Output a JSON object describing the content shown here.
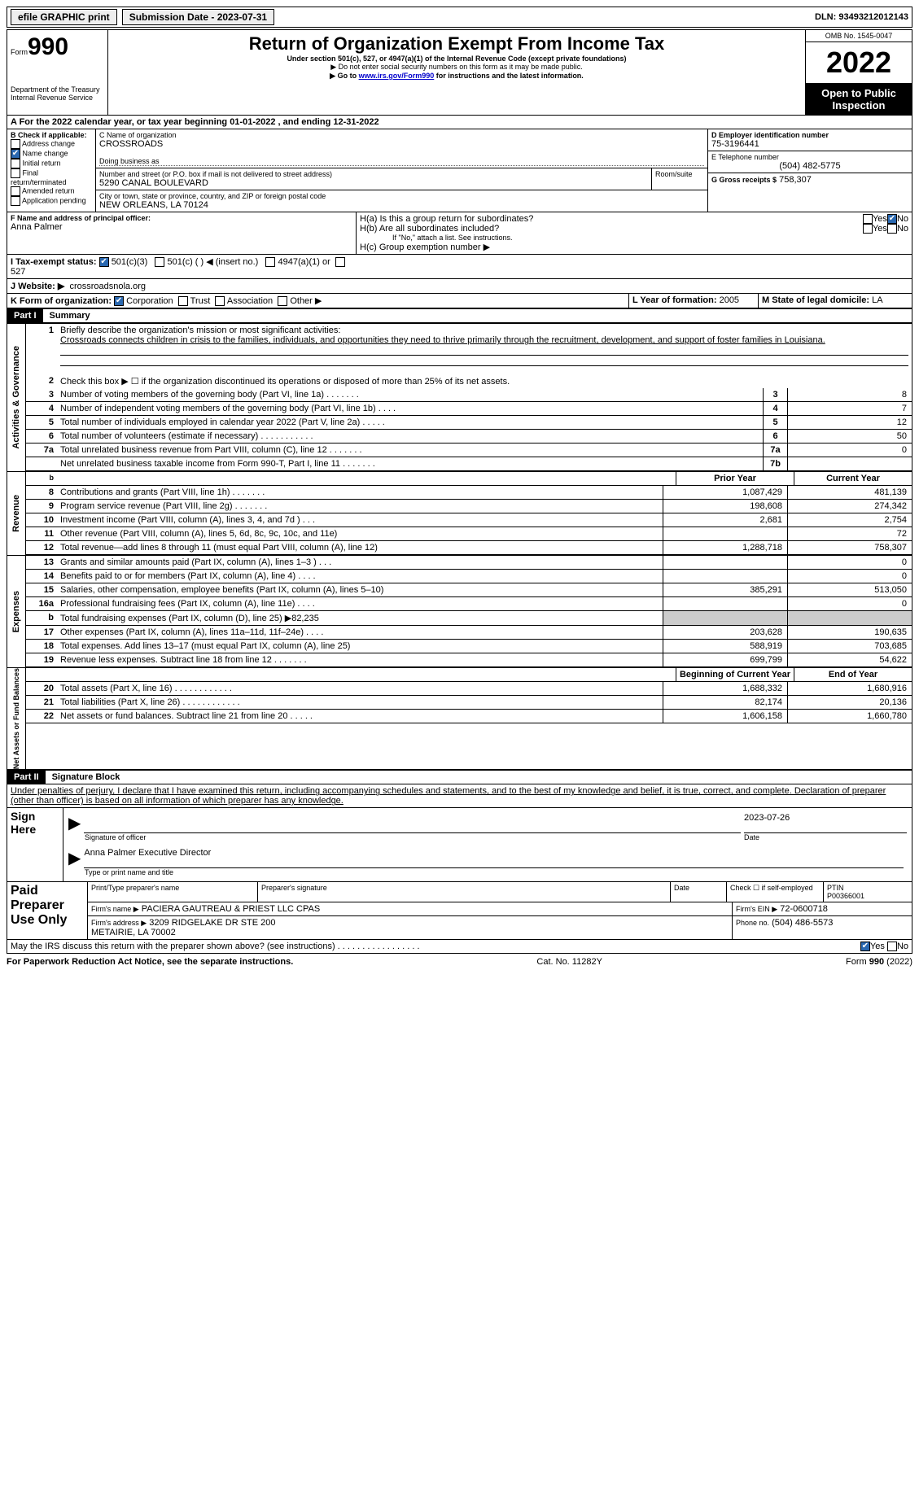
{
  "topBar": {
    "efile": "efile GRAPHIC print",
    "submission": "Submission Date - 2023-07-31",
    "dln": "DLN: 93493212012143"
  },
  "header": {
    "formNo": "990",
    "form": "Form",
    "title": "Return of Organization Exempt From Income Tax",
    "subtitle": "Under section 501(c), 527, or 4947(a)(1) of the Internal Revenue Code (except private foundations)",
    "note1": "▶ Do not enter social security numbers on this form as it may be made public.",
    "note2_pre": "▶ Go to ",
    "note2_link": "www.irs.gov/Form990",
    "note2_post": " for instructions and the latest information.",
    "dept": "Department of the Treasury\nInternal Revenue Service",
    "omb": "OMB No. 1545-0047",
    "year": "2022",
    "open": "Open to Public Inspection"
  },
  "periodA": "A For the 2022 calendar year, or tax year beginning 01-01-2022    , and ending 12-31-2022",
  "blockB": {
    "label": "B Check if applicable:",
    "addr": "Address change",
    "name": "Name change",
    "initial": "Initial return",
    "final": "Final return/terminated",
    "amended": "Amended return",
    "app": "Application pending"
  },
  "blockC": {
    "nameLabel": "C Name of organization",
    "name": "CROSSROADS",
    "dba": "Doing business as",
    "addrLabel": "Number and street (or P.O. box if mail is not delivered to street address)",
    "room": "Room/suite",
    "addr": "5290 CANAL BOULEVARD",
    "cityLabel": "City or town, state or province, country, and ZIP or foreign postal code",
    "city": "NEW ORLEANS, LA   70124"
  },
  "blockD": {
    "label": "D Employer identification number",
    "val": "75-3196441"
  },
  "blockE": {
    "label": "E Telephone number",
    "val": "(504) 482-5775"
  },
  "blockG": {
    "label": "G Gross receipts $",
    "val": "758,307"
  },
  "blockF": {
    "label": "F Name and address of principal officer:",
    "val": "Anna Palmer"
  },
  "blockH": {
    "ha": "H(a)  Is this a group return for subordinates?",
    "hb": "H(b)  Are all subordinates included?",
    "hbNote": "If \"No,\" attach a list. See instructions.",
    "hc": "H(c)  Group exemption number ▶",
    "yes": "Yes",
    "no": "No"
  },
  "taxExempt": {
    "label": "I    Tax-exempt status:",
    "o1": "501(c)(3)",
    "o2": "501(c) (  ) ◀ (insert no.)",
    "o3": "4947(a)(1) or",
    "o4": "527"
  },
  "website": {
    "label": "J    Website: ▶",
    "val": "crossroadsnola.org"
  },
  "formOrg": {
    "label": "K Form of organization:",
    "o1": "Corporation",
    "o2": "Trust",
    "o3": "Association",
    "o4": "Other ▶"
  },
  "yearFormed": {
    "label": "L Year of formation:",
    "val": "2005"
  },
  "stateDom": {
    "label": "M State of legal domicile:",
    "val": "LA"
  },
  "part1": {
    "label": "Part I",
    "title": "Summary"
  },
  "summary": {
    "line1Label": "Briefly describe the organization's mission or most significant activities:",
    "line1Text": "Crossroads connects children in crisis to the families, individuals, and opportunities they need to thrive primarily through the recruitment, development, and support of foster families in Louisiana.",
    "line2": "Check this box ▶ ☐ if the organization discontinued its operations or disposed of more than 25% of its net assets.",
    "rows1": [
      {
        "n": "3",
        "d": "Number of voting members of the governing body (Part VI, line 1a)   .    .    .    .    .    .    .",
        "b": "3",
        "v": "8"
      },
      {
        "n": "4",
        "d": "Number of independent voting members of the governing body (Part VI, line 1b)    .    .    .    .",
        "b": "4",
        "v": "7"
      },
      {
        "n": "5",
        "d": "Total number of individuals employed in calendar year 2022 (Part V, line 2a)   .    .    .    .    .",
        "b": "5",
        "v": "12"
      },
      {
        "n": "6",
        "d": "Total number of volunteers (estimate if necessary)    .    .    .    .    .    .    .    .    .    .    .",
        "b": "6",
        "v": "50"
      },
      {
        "n": "7a",
        "d": "Total unrelated business revenue from Part VIII, column (C), line 12   .    .    .    .    .    .    .",
        "b": "7a",
        "v": "0"
      },
      {
        "n": "",
        "d": "Net unrelated business taxable income from Form 990-T, Part I, line 11   .    .    .    .    .    .    .",
        "b": "7b",
        "v": ""
      }
    ],
    "priorHead": "Prior Year",
    "currHead": "Current Year"
  },
  "revenue": [
    {
      "n": "8",
      "d": "Contributions and grants (Part VIII, line 1h)   .    .    .    .    .    .    .",
      "p": "1,087,429",
      "c": "481,139"
    },
    {
      "n": "9",
      "d": "Program service revenue (Part VIII, line 2g)   .    .    .    .    .    .    .",
      "p": "198,608",
      "c": "274,342"
    },
    {
      "n": "10",
      "d": "Investment income (Part VIII, column (A), lines 3, 4, and 7d )   .    .    .",
      "p": "2,681",
      "c": "2,754"
    },
    {
      "n": "11",
      "d": "Other revenue (Part VIII, column (A), lines 5, 6d, 8c, 9c, 10c, and 11e)",
      "p": "",
      "c": "72"
    },
    {
      "n": "12",
      "d": "Total revenue—add lines 8 through 11 (must equal Part VIII, column (A), line 12)",
      "p": "1,288,718",
      "c": "758,307"
    }
  ],
  "expenses": [
    {
      "n": "13",
      "d": "Grants and similar amounts paid (Part IX, column (A), lines 1–3 )   .    .    .",
      "p": "",
      "c": "0"
    },
    {
      "n": "14",
      "d": "Benefits paid to or for members (Part IX, column (A), line 4)   .    .    .    .",
      "p": "",
      "c": "0"
    },
    {
      "n": "15",
      "d": "Salaries, other compensation, employee benefits (Part IX, column (A), lines 5–10)",
      "p": "385,291",
      "c": "513,050"
    },
    {
      "n": "16a",
      "d": "Professional fundraising fees (Part IX, column (A), line 11e)   .    .    .    .",
      "p": "",
      "c": "0"
    },
    {
      "n": "b",
      "d": "Total fundraising expenses (Part IX, column (D), line 25)  ▶82,235",
      "p": "SHADE",
      "c": "SHADE"
    },
    {
      "n": "17",
      "d": "Other expenses (Part IX, column (A), lines 11a–11d, 11f–24e)   .    .    .    .",
      "p": "203,628",
      "c": "190,635"
    },
    {
      "n": "18",
      "d": "Total expenses. Add lines 13–17 (must equal Part IX, column (A), line 25)",
      "p": "588,919",
      "c": "703,685"
    },
    {
      "n": "19",
      "d": "Revenue less expenses. Subtract line 18 from line 12  .    .    .    .    .    .    .",
      "p": "699,799",
      "c": "54,622"
    }
  ],
  "netAssets": {
    "begHead": "Beginning of Current Year",
    "endHead": "End of Year",
    "rows": [
      {
        "n": "20",
        "d": "Total assets (Part X, line 16)   .    .    .    .    .    .    .    .    .    .    .    .",
        "p": "1,688,332",
        "c": "1,680,916"
      },
      {
        "n": "21",
        "d": "Total liabilities (Part X, line 26)   .    .    .    .    .    .    .    .    .    .    .    .",
        "p": "82,174",
        "c": "20,136"
      },
      {
        "n": "22",
        "d": "Net assets or fund balances. Subtract line 21 from line 20   .    .    .    .    .",
        "p": "1,606,158",
        "c": "1,660,780"
      }
    ]
  },
  "part2": {
    "label": "Part II",
    "title": "Signature Block",
    "penalties": "Under penalties of perjury, I declare that I have examined this return, including accompanying schedules and statements, and to the best of my knowledge and belief, it is true, correct, and complete. Declaration of preparer (other than officer) is based on all information of which preparer has any knowledge."
  },
  "sign": {
    "signHere": "Sign Here",
    "sigOff": "Signature of officer",
    "date": "Date",
    "dateVal": "2023-07-26",
    "name": "Anna Palmer  Executive Director",
    "typeName": "Type or print name and title"
  },
  "paid": {
    "label": "Paid Preparer Use Only",
    "prepName": "Print/Type preparer's name",
    "prepSig": "Preparer's signature",
    "dateL": "Date",
    "check": "Check ☐ if self-employed",
    "ptinL": "PTIN",
    "ptin": "P00366001",
    "firmName": "Firm's name    ▶",
    "firm": "PACIERA GAUTREAU & PRIEST LLC CPAS",
    "firmEinL": "Firm's EIN ▶",
    "firmEin": "72-0600718",
    "firmAddrL": "Firm's address ▶",
    "firmAddr": "3209 RIDGELAKE DR STE 200\nMETAIRIE, LA  70002",
    "phoneL": "Phone no.",
    "phone": "(504) 486-5573"
  },
  "discuss": "May the IRS discuss this return with the preparer shown above? (see instructions)   .    .    .    .    .    .    .    .    .    .    .    .    .    .    .    .    .",
  "footer": {
    "left": "For Paperwork Reduction Act Notice, see the separate instructions.",
    "mid": "Cat. No. 11282Y",
    "right": "Form 990 (2022)"
  },
  "vertLabels": {
    "act": "Activities & Governance",
    "rev": "Revenue",
    "exp": "Expenses",
    "na": "Net Assets or Fund Balances"
  }
}
